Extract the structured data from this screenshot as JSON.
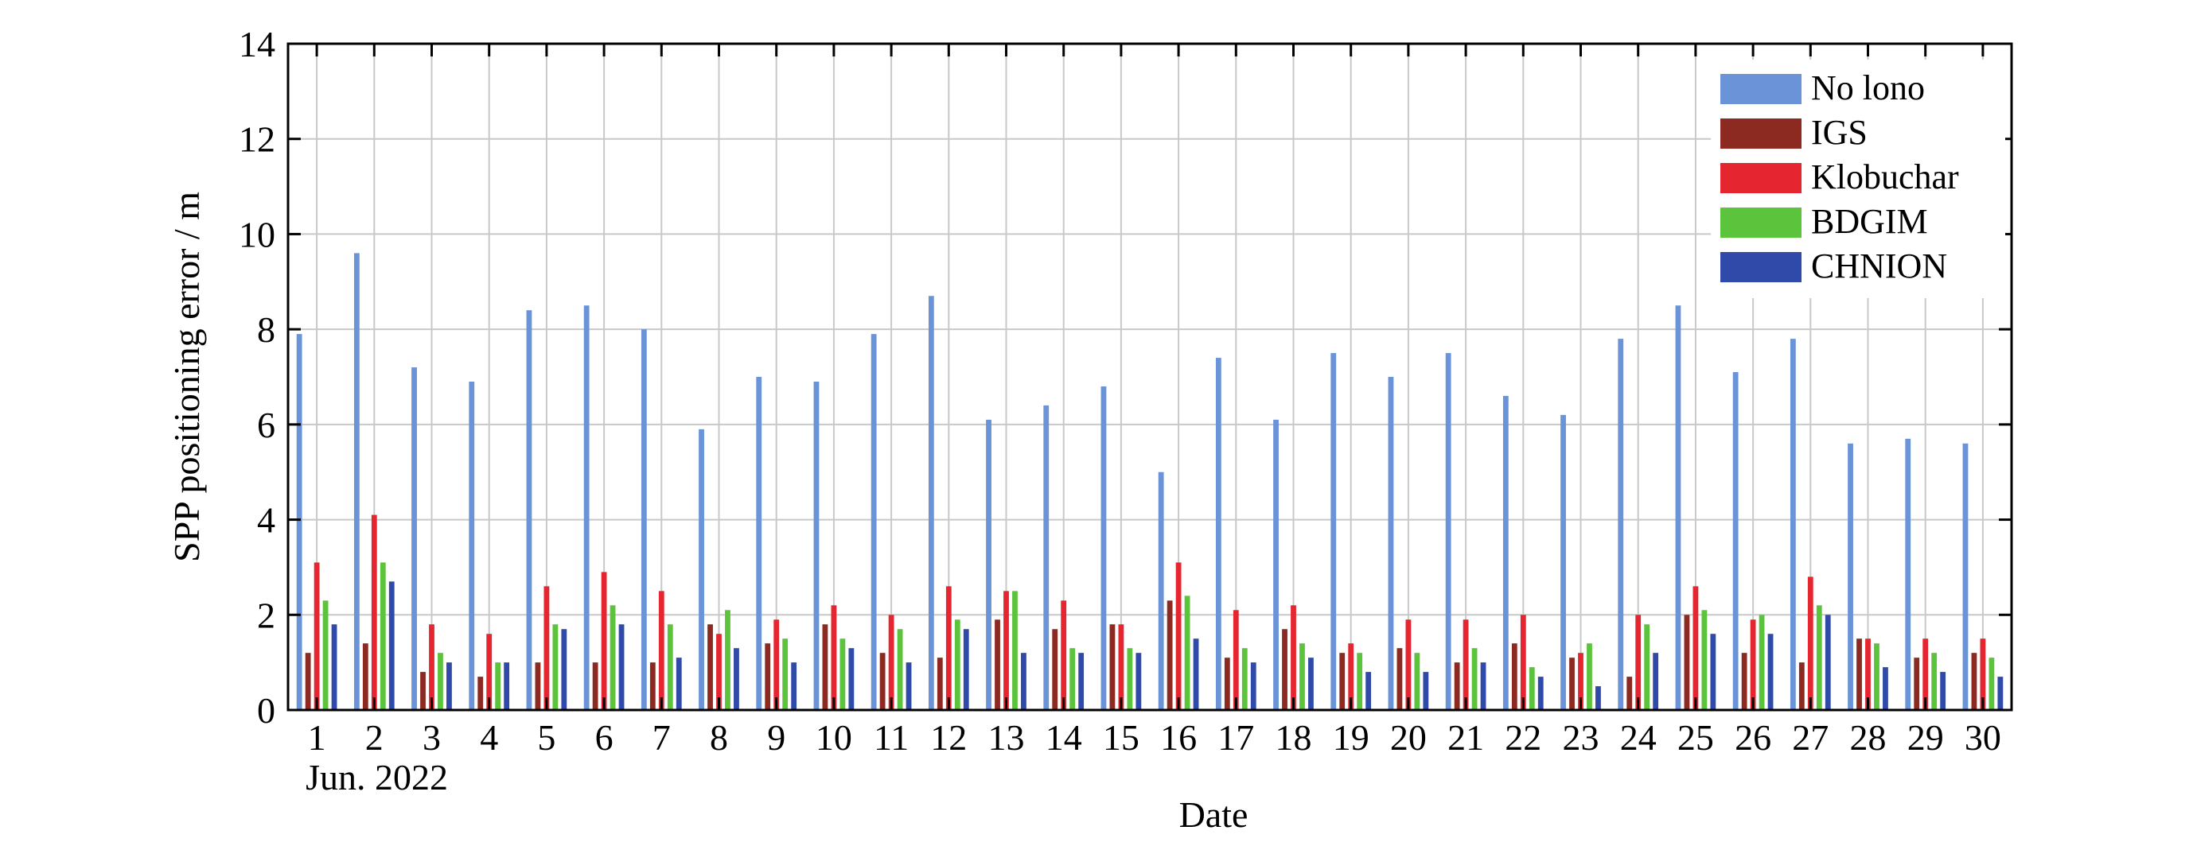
{
  "chart_data": {
    "type": "bar",
    "categories": [
      "1",
      "2",
      "3",
      "4",
      "5",
      "6",
      "7",
      "8",
      "9",
      "10",
      "11",
      "12",
      "13",
      "14",
      "15",
      "16",
      "17",
      "18",
      "19",
      "20",
      "21",
      "22",
      "23",
      "24",
      "25",
      "26",
      "27",
      "28",
      "29",
      "30"
    ],
    "date_caption": "Jun. 2022",
    "xlabel": "Date",
    "ylabel": "SPP positioning error / m",
    "ylim": [
      0,
      14
    ],
    "yticks": [
      0,
      2,
      4,
      6,
      8,
      10,
      12,
      14
    ],
    "grid": true,
    "legend_position": "top-right",
    "series": [
      {
        "name": "No lono",
        "color": "#6a93d8",
        "values": [
          7.9,
          9.6,
          7.2,
          6.9,
          8.4,
          8.5,
          8.0,
          5.9,
          7.0,
          6.9,
          7.9,
          8.7,
          6.1,
          6.4,
          6.8,
          5.0,
          7.4,
          6.1,
          7.5,
          7.0,
          7.5,
          6.6,
          6.2,
          7.8,
          8.5,
          7.1,
          7.8,
          5.6,
          5.7,
          5.6
        ]
      },
      {
        "name": "IGS",
        "color": "#8c2a22",
        "values": [
          1.2,
          1.4,
          0.8,
          0.7,
          1.0,
          1.0,
          1.0,
          1.8,
          1.4,
          1.8,
          1.2,
          1.1,
          1.9,
          1.7,
          1.8,
          2.3,
          1.1,
          1.7,
          1.2,
          1.3,
          1.0,
          1.4,
          1.1,
          0.7,
          2.0,
          1.2,
          1.0,
          1.5,
          1.1,
          1.2
        ]
      },
      {
        "name": "Klobuchar",
        "color": "#e5252f",
        "values": [
          3.1,
          4.1,
          1.8,
          1.6,
          2.6,
          2.9,
          2.5,
          1.6,
          1.9,
          2.2,
          2.0,
          2.6,
          2.5,
          2.3,
          1.8,
          3.1,
          2.1,
          2.2,
          1.4,
          1.9,
          1.9,
          2.0,
          1.2,
          2.0,
          2.6,
          1.9,
          2.8,
          1.5,
          1.5,
          1.5
        ]
      },
      {
        "name": "BDGIM",
        "color": "#5cc33c",
        "values": [
          2.3,
          3.1,
          1.2,
          1.0,
          1.8,
          2.2,
          1.8,
          2.1,
          1.5,
          1.5,
          1.7,
          1.9,
          2.5,
          1.3,
          1.3,
          2.4,
          1.3,
          1.4,
          1.2,
          1.2,
          1.3,
          0.9,
          1.4,
          1.8,
          2.1,
          2.0,
          2.2,
          1.4,
          1.2,
          1.1
        ]
      },
      {
        "name": "CHNION",
        "color": "#2f4aa8",
        "values": [
          1.8,
          2.7,
          1.0,
          1.0,
          1.7,
          1.8,
          1.1,
          1.3,
          1.0,
          1.3,
          1.0,
          1.7,
          1.2,
          1.2,
          1.2,
          1.5,
          1.0,
          1.1,
          0.8,
          0.8,
          1.0,
          0.7,
          0.5,
          1.2,
          1.6,
          1.6,
          2.0,
          0.9,
          0.8,
          0.7
        ]
      }
    ]
  }
}
